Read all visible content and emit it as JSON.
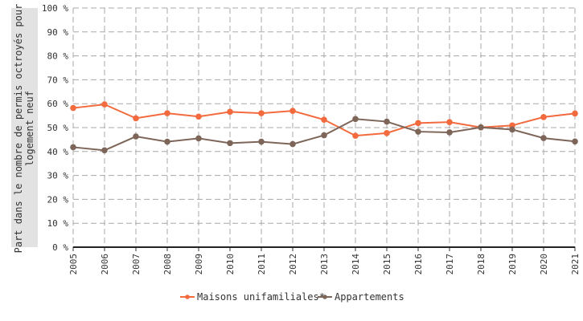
{
  "chart_data": {
    "type": "line",
    "ylabel_lines": [
      "Part dans le nombre de permis octroyés pour",
      "logement neuf"
    ],
    "y_ticks": [
      "0 %",
      "10 %",
      "20 %",
      "30 %",
      "40 %",
      "50 %",
      "60 %",
      "70 %",
      "80 %",
      "90 %",
      "100 %"
    ],
    "ylim": [
      0,
      100
    ],
    "grid": true,
    "legend_position": "bottom",
    "x": [
      "2005",
      "2006",
      "2007",
      "2008",
      "2009",
      "2010",
      "2011",
      "2012",
      "2013",
      "2014",
      "2015",
      "2016",
      "2017",
      "2018",
      "2019",
      "2020",
      "2021"
    ],
    "series": [
      {
        "name": "Maisons unifamiliales*",
        "color": "#f26a3d",
        "values": [
          58.2,
          59.7,
          53.9,
          56.0,
          54.6,
          56.6,
          56.0,
          57.0,
          53.3,
          46.6,
          47.7,
          51.9,
          52.3,
          50.1,
          50.9,
          54.4,
          55.9
        ]
      },
      {
        "name": "Appartements",
        "color": "#7d6659",
        "values": [
          41.8,
          40.5,
          46.3,
          44.1,
          45.5,
          43.5,
          44.1,
          43.1,
          46.8,
          53.6,
          52.5,
          48.3,
          48.0,
          50.1,
          49.2,
          45.6,
          44.2
        ]
      }
    ]
  }
}
